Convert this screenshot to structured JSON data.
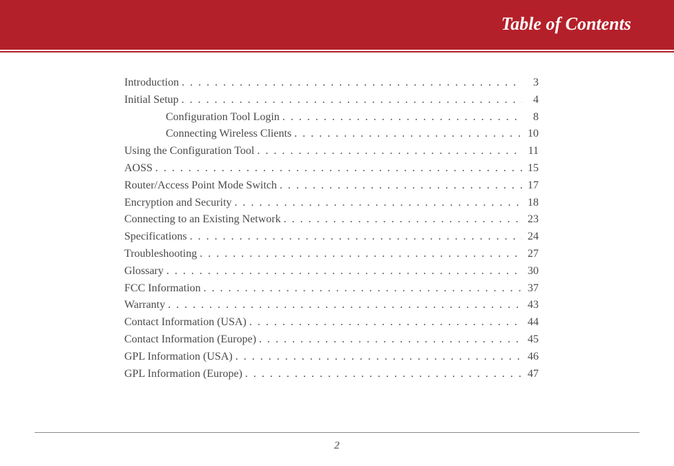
{
  "header": {
    "title": "Table of Contents",
    "bg_color": "#b4202a",
    "text_color": "#ffffff"
  },
  "toc": {
    "text_color": "#4a4a4a",
    "fontsize": 16,
    "entries": [
      {
        "title": "Introduction ",
        "page": "3",
        "indent": false
      },
      {
        "title": "Initial Setup",
        "page": "4",
        "indent": false
      },
      {
        "title": "Configuration Tool Login",
        "page": "8",
        "indent": true
      },
      {
        "title": "Connecting Wireless Clients",
        "page": "10",
        "indent": true
      },
      {
        "title": "Using the Configuration Tool",
        "page": "11",
        "indent": false
      },
      {
        "title": "AOSS",
        "page": "15",
        "indent": false
      },
      {
        "title": "Router/Access Point Mode Switch",
        "page": "17",
        "indent": false
      },
      {
        "title": "Encryption and Security",
        "page": "18",
        "indent": false
      },
      {
        "title": "Connecting to an Existing Network",
        "page": "23",
        "indent": false
      },
      {
        "title": "Specifications ",
        "page": "24",
        "indent": false
      },
      {
        "title": "Troubleshooting",
        "page": "27",
        "indent": false
      },
      {
        "title": "Glossary",
        "page": "30",
        "indent": false
      },
      {
        "title": "FCC Information",
        "page": "37",
        "indent": false
      },
      {
        "title": "Warranty",
        "page": "43",
        "indent": false
      },
      {
        "title": "Contact Information (USA)",
        "page": "44",
        "indent": false
      },
      {
        "title": "Contact Information (Europe)",
        "page": "45",
        "indent": false
      },
      {
        "title": "GPL Information (USA)",
        "page": "46",
        "indent": false
      },
      {
        "title": "GPL Information (Europe)",
        "page": "47",
        "indent": false
      }
    ]
  },
  "footer": {
    "page_number": "2",
    "page_number_color": "#808080"
  }
}
